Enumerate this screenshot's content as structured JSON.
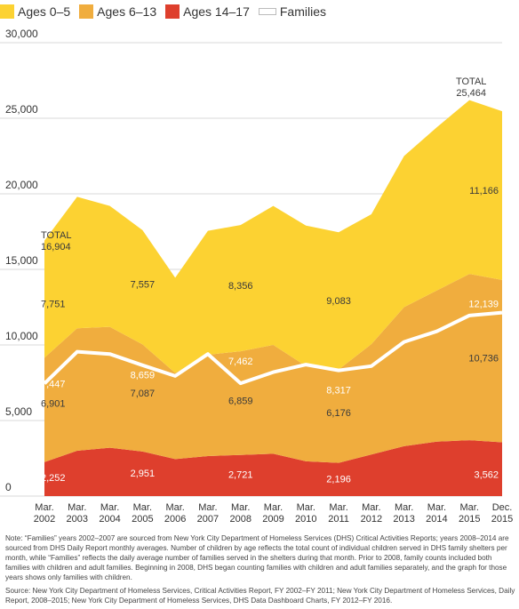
{
  "chart_data": {
    "type": "area",
    "x": [
      "Mar. 2002",
      "Mar. 2003",
      "Mar. 2004",
      "Mar. 2005",
      "Mar. 2006",
      "Mar. 2007",
      "Mar. 2008",
      "Mar. 2009",
      "Mar. 2010",
      "Mar. 2011",
      "Mar. 2012",
      "Mar. 2013",
      "Mar. 2014",
      "Mar. 2015",
      "Dec. 2015"
    ],
    "tick_labels": [
      [
        "Mar.",
        "2002"
      ],
      [
        "Mar.",
        "2003"
      ],
      [
        "Mar.",
        "2004"
      ],
      [
        "Mar.",
        "2005"
      ],
      [
        "Mar.",
        "2006"
      ],
      [
        "Mar.",
        "2007"
      ],
      [
        "Mar.",
        "2008"
      ],
      [
        "Mar.",
        "2009"
      ],
      [
        "Mar.",
        "2010"
      ],
      [
        "Mar.",
        "2011"
      ],
      [
        "Mar.",
        "2012"
      ],
      [
        "Mar.",
        "2013"
      ],
      [
        "Mar.",
        "2014"
      ],
      [
        "Mar.",
        "2015"
      ],
      [
        "Dec.",
        "2015"
      ]
    ],
    "ylim": [
      0,
      30000
    ],
    "yticks": [
      0,
      5000,
      10000,
      15000,
      20000,
      25000,
      30000
    ],
    "ytick_labels": [
      "0",
      "5,000",
      "10,000",
      "15,000",
      "20,000",
      "25,000",
      "30,000"
    ],
    "grid": true,
    "legend_position": "top-left",
    "series": [
      {
        "name": "Ages 14–17",
        "color": "#de3f2d",
        "values": [
          2252,
          3000,
          3200,
          2951,
          2450,
          2650,
          2721,
          2800,
          2300,
          2196,
          2750,
          3300,
          3600,
          3700,
          3562
        ]
      },
      {
        "name": "Ages 6–13",
        "color": "#f0ad3e",
        "values": [
          6901,
          8100,
          8000,
          7087,
          5700,
          6700,
          6859,
          7200,
          6300,
          6176,
          7300,
          9200,
          10000,
          11000,
          10736
        ]
      },
      {
        "name": "Ages 0–5",
        "color": "#fcd232",
        "values": [
          7751,
          8700,
          8000,
          7557,
          6300,
          8200,
          8356,
          9200,
          9300,
          9083,
          8600,
          10000,
          10800,
          11500,
          11166
        ]
      }
    ],
    "families": {
      "name": "Families",
      "color": "#ffffff",
      "values": [
        7447,
        9550,
        9400,
        8659,
        7950,
        9400,
        7462,
        8200,
        8700,
        8317,
        8600,
        10200,
        10900,
        11950,
        12139
      ]
    },
    "annotations": {
      "total_2002_label": "TOTAL",
      "total_2002_value": "16,904",
      "total_2015_label": "TOTAL",
      "total_2015_value": "25,464"
    },
    "data_labels": [
      {
        "text": "7,751",
        "x": 0,
        "y": 12500,
        "color": "#3a3a3a"
      },
      {
        "text": "7,557",
        "x": 3,
        "y": 13800,
        "color": "#3a3a3a"
      },
      {
        "text": "8,356",
        "x": 6,
        "y": 13700,
        "color": "#3a3a3a"
      },
      {
        "text": "9,083",
        "x": 9,
        "y": 12700,
        "color": "#3a3a3a"
      },
      {
        "text": "11,166",
        "x": 14,
        "y": 20000,
        "color": "#3a3a3a"
      },
      {
        "text": "7,447",
        "x": 0,
        "y": 7200,
        "color": "#ffffff"
      },
      {
        "text": "8,659",
        "x": 3,
        "y": 7800,
        "color": "#ffffff"
      },
      {
        "text": "7,462",
        "x": 6,
        "y": 8700,
        "color": "#ffffff"
      },
      {
        "text": "8,317",
        "x": 9,
        "y": 6800,
        "color": "#ffffff"
      },
      {
        "text": "12,139",
        "x": 14,
        "y": 12500,
        "color": "#ffffff"
      },
      {
        "text": "6,901",
        "x": 0,
        "y": 5900,
        "color": "#3a3a3a"
      },
      {
        "text": "7,087",
        "x": 3,
        "y": 6600,
        "color": "#3a3a3a"
      },
      {
        "text": "6,859",
        "x": 6,
        "y": 6100,
        "color": "#3a3a3a"
      },
      {
        "text": "6,176",
        "x": 9,
        "y": 5300,
        "color": "#3a3a3a"
      },
      {
        "text": "10,736",
        "x": 14,
        "y": 8900,
        "color": "#3a3a3a"
      },
      {
        "text": "2,252",
        "x": 0,
        "y": 1000,
        "color": "#ffffff"
      },
      {
        "text": "2,951",
        "x": 3,
        "y": 1300,
        "color": "#ffffff"
      },
      {
        "text": "2,721",
        "x": 6,
        "y": 1200,
        "color": "#ffffff"
      },
      {
        "text": "2,196",
        "x": 9,
        "y": 900,
        "color": "#ffffff"
      },
      {
        "text": "3,562",
        "x": 14,
        "y": 1200,
        "color": "#ffffff"
      }
    ]
  },
  "legend": [
    {
      "label": "Ages 0–5",
      "color": "#fcd232"
    },
    {
      "label": "Ages 6–13",
      "color": "#f0ad3e"
    },
    {
      "label": "Ages 14–17",
      "color": "#de3f2d"
    },
    {
      "label": "Families",
      "color": "#ffffff"
    }
  ],
  "notes": {
    "note": "Note: “Families” years 2002–2007 are sourced from New York City Department of Homeless Services (DHS) Critical Activities Reports; years 2008–2014 are sourced from DHS Daily Report monthly averages. Number of children by age reflects the total count of individual children served in DHS family shelters per month, while “Families” reflects the daily average number of families served in the shelters during that month. Prior to 2008, family counts included both families with children and adult families. Beginning in 2008, DHS began counting families with children and adult families separately, and the graph for those years shows only families with children.",
    "source": "Source: New York City Department of Homeless Services, Critical Activities Report, FY 2002–FY 2011; New York City Department of Homeless Services, Daily Report, 2008–2015; New York City Department of Homeless Services, DHS Data Dashboard Charts, FY 2012–FY 2016."
  }
}
